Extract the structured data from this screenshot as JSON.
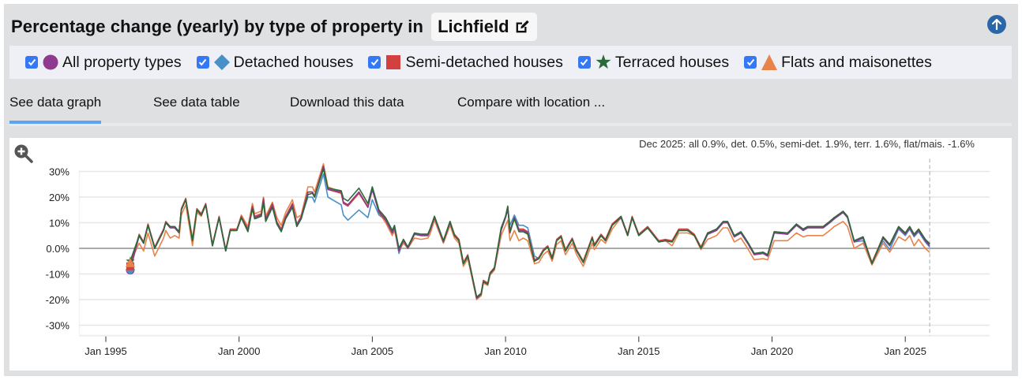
{
  "header": {
    "title": "Percentage change (yearly) by type of property in",
    "location": "Lichfield",
    "edit_icon": "pen-to-square-icon",
    "scroll_top_icon": "arrow-up-circle-icon"
  },
  "legend": [
    {
      "label": "All property types",
      "checked": true,
      "symbol": "circle",
      "color": "#8e3a8e"
    },
    {
      "label": "Detached houses",
      "checked": true,
      "symbol": "diamond",
      "color": "#4a90c8"
    },
    {
      "label": "Semi-detached houses",
      "checked": true,
      "symbol": "square",
      "color": "#d2413f"
    },
    {
      "label": "Terraced houses",
      "checked": true,
      "symbol": "star",
      "color": "#2a6a3a"
    },
    {
      "label": "Flats and maisonettes",
      "checked": true,
      "symbol": "triangle",
      "color": "#e8834a"
    }
  ],
  "tabs": [
    {
      "label": "See data graph",
      "active": true
    },
    {
      "label": "See data table",
      "active": false
    },
    {
      "label": "Download this data",
      "active": false
    },
    {
      "label": "Compare with location ...",
      "active": false
    }
  ],
  "chart": {
    "zoom_icon": "zoom-in-icon",
    "annotation": "Dec 2025: all 0.9%, det. 0.5%, semi-det. 1.9%, terr. 1.6%, flat/mais. -1.6%"
  },
  "chart_data": {
    "type": "line",
    "title": "Percentage change (yearly) by type of property in Lichfield",
    "xlabel": "",
    "ylabel": "",
    "ylim": [
      -35,
      35
    ],
    "xlim": [
      "1994-01",
      "2028-03"
    ],
    "yticks": [
      "30%",
      "20%",
      "10%",
      "0.0%",
      "-10%",
      "-20%",
      "-30%"
    ],
    "ytick_values": [
      30,
      20,
      10,
      0,
      -10,
      -20,
      -30
    ],
    "xticks": [
      "Jan 1995",
      "Jan 2000",
      "Jan 2005",
      "Jan 2010",
      "Jan 2015",
      "Jan 2020",
      "Jan 2025"
    ],
    "xtick_values": [
      "1995-01",
      "2000-01",
      "2005-01",
      "2010-01",
      "2015-01",
      "2020-01",
      "2025-01"
    ],
    "grid": true,
    "marker_line": "2025-12",
    "x": [
      "1995-12",
      "1996-04",
      "1996-06",
      "1996-08",
      "1996-11",
      "1997-03",
      "1997-04",
      "1997-06",
      "1997-08",
      "1997-10",
      "1997-11",
      "1998-01",
      "1998-04",
      "1998-06",
      "1998-08",
      "1998-10",
      "1999-01",
      "1999-04",
      "1999-07",
      "1999-09",
      "1999-12",
      "2000-02",
      "2000-05",
      "2000-07",
      "2000-08",
      "2000-11",
      "2000-12",
      "2001-01",
      "2001-04",
      "2001-06",
      "2001-08",
      "2001-10",
      "2002-01",
      "2002-03",
      "2002-05",
      "2002-08",
      "2002-10",
      "2002-11",
      "2003-03",
      "2003-05",
      "2003-11",
      "2003-12",
      "2004-02",
      "2004-07",
      "2004-11",
      "2005-01",
      "2005-04",
      "2005-07",
      "2005-10",
      "2005-11",
      "2006-01",
      "2006-03",
      "2006-05",
      "2006-08",
      "2006-11",
      "2007-02",
      "2007-03",
      "2007-05",
      "2007-09",
      "2007-12",
      "2008-02",
      "2008-04",
      "2008-06",
      "2008-08",
      "2008-12",
      "2009-02",
      "2009-03",
      "2009-05",
      "2009-06",
      "2009-08",
      "2009-11",
      "2010-01",
      "2010-02",
      "2010-03",
      "2010-05",
      "2010-07",
      "2010-09",
      "2010-11",
      "2011-02",
      "2011-04",
      "2011-06",
      "2011-08",
      "2011-10",
      "2011-12",
      "2012-02",
      "2012-04",
      "2012-07",
      "2012-09",
      "2012-12",
      "2013-04",
      "2013-05",
      "2013-08",
      "2013-10",
      "2014-01",
      "2014-05",
      "2014-08",
      "2014-10",
      "2015-01",
      "2015-05",
      "2015-10",
      "2016-01",
      "2016-04",
      "2016-07",
      "2016-11",
      "2017-02",
      "2017-05",
      "2017-08",
      "2017-12",
      "2018-03",
      "2018-05",
      "2018-08",
      "2018-11",
      "2019-02",
      "2019-05",
      "2019-09",
      "2019-11",
      "2020-02",
      "2020-08",
      "2020-12",
      "2021-03",
      "2021-05",
      "2021-08",
      "2021-12",
      "2022-03",
      "2022-05",
      "2022-09",
      "2022-11",
      "2023-02",
      "2023-06",
      "2023-10",
      "2024-03",
      "2024-06",
      "2024-10",
      "2025-01",
      "2025-03",
      "2025-05",
      "2025-07",
      "2025-10",
      "2025-12"
    ],
    "series": [
      {
        "name": "All property types",
        "color": "#8e3a8e",
        "values": [
          -8.5,
          5,
          2,
          9,
          0,
          7,
          10,
          8,
          8,
          6,
          15,
          19,
          3,
          15,
          13,
          17,
          1,
          12,
          -1,
          7,
          7,
          12,
          7,
          16,
          12,
          13,
          19,
          11,
          17,
          10,
          7,
          12,
          17,
          9,
          12,
          22,
          22,
          20,
          32,
          23,
          22,
          18,
          17,
          22,
          16,
          23,
          14,
          11,
          6,
          8,
          -1,
          3,
          0,
          5.5,
          5,
          5,
          7,
          12,
          2.5,
          10,
          5,
          3,
          -6,
          -3,
          -19.5,
          -18,
          -13,
          -14,
          -10,
          -8,
          7,
          12,
          16,
          6,
          12,
          7,
          7,
          6,
          -5,
          -4,
          -1,
          0.5,
          -4,
          3,
          4.5,
          -1,
          3.5,
          -1,
          -5.5,
          4,
          1,
          5,
          3,
          9,
          12,
          5,
          12,
          5,
          8,
          2.5,
          3,
          2.5,
          7,
          7,
          5,
          0,
          5.5,
          7,
          10,
          10,
          4.5,
          6,
          2,
          -2.5,
          -2,
          -3,
          6,
          5.5,
          9,
          7,
          8,
          8,
          8,
          10,
          11.5,
          14,
          12,
          2.5,
          4,
          -6,
          4,
          1,
          8,
          5.5,
          8,
          5,
          7,
          3,
          0.9
        ]
      },
      {
        "name": "Detached houses",
        "color": "#4a90c8",
        "values": [
          -8.5,
          5,
          2,
          9,
          0,
          7,
          10,
          8,
          8,
          6,
          15,
          19,
          3,
          15,
          13,
          17,
          1,
          12,
          -1,
          7,
          7,
          12,
          7,
          16,
          12,
          13,
          19,
          11,
          17,
          10,
          7,
          12,
          17,
          9,
          12,
          20,
          20,
          18,
          29,
          20,
          17,
          13,
          11,
          15,
          12,
          19,
          13,
          11,
          6,
          8,
          -2,
          3,
          0,
          5.5,
          5,
          5,
          7,
          12,
          2.5,
          10,
          5,
          3,
          -6,
          -3,
          -19,
          -17.5,
          -13,
          -14,
          -10,
          -8,
          7,
          12,
          15,
          9,
          13,
          9,
          9,
          8,
          -3,
          -4,
          -1,
          0.5,
          -4,
          3,
          4.5,
          -1,
          3.5,
          -1,
          -5.5,
          4,
          1,
          5,
          3,
          9,
          12,
          5,
          12,
          5,
          8,
          2.5,
          3,
          2.5,
          7,
          7,
          5,
          0,
          5.5,
          7,
          10,
          10,
          4.5,
          6,
          2,
          -2.5,
          -2,
          -3,
          6,
          5.5,
          9,
          7,
          8,
          8,
          8,
          10,
          11.5,
          14,
          12,
          2.5,
          3,
          -6,
          3,
          -0.5,
          7.5,
          5,
          7.5,
          4.5,
          6.5,
          2.5,
          0.5
        ]
      },
      {
        "name": "Semi-detached houses",
        "color": "#d2413f",
        "values": [
          -7,
          5.5,
          2.5,
          9.5,
          0.5,
          7.5,
          10.5,
          8.5,
          8.5,
          6.5,
          15.5,
          19.5,
          3.5,
          15.5,
          13.5,
          17.5,
          1.5,
          12.5,
          -0.5,
          7.5,
          7.5,
          12.5,
          7.5,
          16.5,
          12.5,
          13.5,
          19.5,
          11.5,
          17.5,
          10.5,
          7.5,
          12.5,
          17.5,
          9.5,
          12.5,
          22,
          22,
          20.5,
          32,
          23,
          21.5,
          17.5,
          16.5,
          21.5,
          16,
          23,
          14.5,
          11.5,
          6.5,
          8.5,
          -0.5,
          3.5,
          0.5,
          6,
          5.5,
          5.5,
          7.5,
          12.5,
          3,
          10.5,
          5.5,
          3.5,
          -5.5,
          -2.5,
          -19,
          -17.5,
          -12.5,
          -13.5,
          -9.5,
          -7.5,
          7.5,
          12.5,
          16,
          7,
          12,
          7.5,
          7.5,
          6.5,
          -4.5,
          -3.5,
          -0.5,
          1,
          -3.5,
          3.5,
          5,
          -0.5,
          4,
          -0.5,
          -5,
          4.5,
          1.5,
          5.5,
          3.5,
          9.5,
          12.5,
          5.5,
          12.5,
          5.5,
          8.5,
          3,
          3.5,
          3,
          7.5,
          7.5,
          5.5,
          0.5,
          6,
          7.5,
          10,
          10,
          5,
          6.5,
          2.5,
          -2,
          -1.5,
          -2.5,
          6.5,
          6,
          9,
          7.5,
          8.5,
          8.5,
          8.5,
          10.5,
          12,
          14,
          12,
          3,
          4.5,
          -5.5,
          4.5,
          1.5,
          8.5,
          6,
          8.5,
          5.5,
          7.5,
          3.5,
          1.9
        ]
      },
      {
        "name": "Terraced houses",
        "color": "#2a6a3a",
        "values": [
          -5,
          5,
          2,
          9,
          0,
          7,
          10,
          8.5,
          8.5,
          6.5,
          15,
          19,
          3,
          15,
          13,
          17,
          1,
          12,
          -1,
          7,
          7,
          12,
          6.5,
          15.5,
          11.5,
          12.5,
          18,
          10.5,
          16,
          9.5,
          6.5,
          11.5,
          16,
          8.5,
          11.5,
          21,
          21.5,
          20,
          31,
          23.5,
          22.5,
          19.5,
          18.5,
          23.5,
          17.5,
          24,
          15,
          12,
          7,
          9,
          0,
          3.5,
          0.5,
          6,
          5.5,
          5.5,
          7.5,
          12.5,
          3,
          10.5,
          5,
          3,
          -6,
          -3,
          -19,
          -18,
          -13,
          -14,
          -10,
          -7.5,
          8,
          12.5,
          16.5,
          6.5,
          11.5,
          6.5,
          6.5,
          5.5,
          -5,
          -4,
          -1,
          0.5,
          -4,
          3,
          4.5,
          -1,
          3.5,
          -1,
          -5.5,
          4,
          1,
          5,
          3,
          9,
          12.5,
          5,
          12,
          5,
          8,
          2.5,
          3,
          2.5,
          7,
          7,
          5,
          0,
          6,
          7.5,
          10.5,
          10.5,
          5,
          6.5,
          2.5,
          -2,
          -1.5,
          -2.5,
          6.5,
          6,
          9.5,
          7.5,
          8.5,
          8.5,
          8.5,
          10.5,
          12,
          14.5,
          12.5,
          3,
          4.5,
          -6,
          4.5,
          1.5,
          8.5,
          6,
          8.5,
          5.5,
          7.5,
          3.5,
          1.6
        ]
      },
      {
        "name": "Flats and maisonettes",
        "color": "#e8834a",
        "values": [
          -5.5,
          2,
          -1,
          6,
          -3,
          4,
          7,
          4,
          5,
          4,
          13,
          17,
          1,
          14,
          12.5,
          17,
          1,
          12,
          -1,
          7,
          7,
          13,
          8.5,
          17.5,
          13.5,
          14.5,
          20,
          12.5,
          18,
          12,
          9,
          14,
          19,
          12,
          13,
          24,
          24,
          22,
          33,
          24,
          22,
          18,
          17,
          22,
          16.5,
          23,
          14,
          10,
          5,
          7,
          -1,
          2,
          0,
          4,
          3.5,
          4,
          5.5,
          11,
          2,
          9,
          4,
          2,
          -7,
          -4,
          -20,
          -18.5,
          -13.5,
          -14.5,
          -10.5,
          -8.5,
          5,
          9,
          11,
          3,
          7,
          3,
          4,
          3,
          -6,
          -5.5,
          -2.5,
          -1,
          -5,
          1.5,
          3,
          -2.5,
          2,
          -2.5,
          -7,
          2,
          -0.5,
          3.5,
          2,
          7.5,
          12,
          5,
          12,
          5,
          8,
          2.5,
          3,
          1,
          6,
          6,
          5,
          -0.5,
          3.5,
          5,
          8,
          8,
          2.5,
          4,
          0,
          -4.5,
          -4,
          -4.5,
          3,
          3,
          6,
          4.5,
          5,
          5,
          5,
          7,
          8.5,
          10.5,
          8.5,
          0,
          2,
          -6.5,
          2,
          -1.5,
          4.5,
          3,
          5,
          1,
          3.5,
          0,
          -1.6
        ]
      }
    ]
  }
}
